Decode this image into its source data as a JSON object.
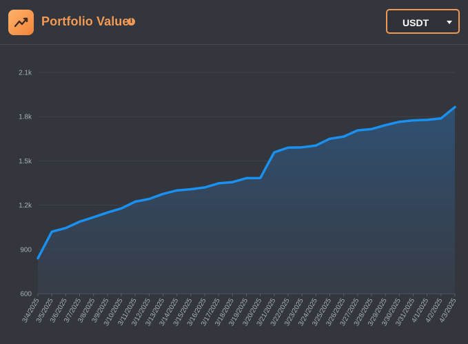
{
  "header": {
    "title": "Portfolio Value",
    "info_icon": "info-icon",
    "logo_icon": "trend-line-icon",
    "currency_select": {
      "value": "USDT"
    }
  },
  "colors": {
    "accent": "#f29a54",
    "line": "#1a90f0",
    "background": "#33363d"
  },
  "chart_data": {
    "type": "area",
    "title": "",
    "xlabel": "",
    "ylabel": "",
    "ylim": [
      600,
      2100
    ],
    "yticks": [
      600,
      900,
      1200,
      1500,
      1800,
      2100
    ],
    "ytick_labels": [
      "600",
      "900",
      "1.2k",
      "1.5k",
      "1.8k",
      "2.1k"
    ],
    "grid": true,
    "legend": "none",
    "categories": [
      "3/4/2025",
      "3/5/2025",
      "3/6/2025",
      "3/7/2025",
      "3/8/2025",
      "3/9/2025",
      "3/10/2025",
      "3/11/2025",
      "3/12/2025",
      "3/13/2025",
      "3/14/2025",
      "3/15/2025",
      "3/16/2025",
      "3/17/2025",
      "3/18/2025",
      "3/19/2025",
      "3/20/2025",
      "3/21/2025",
      "3/22/2025",
      "3/23/2025",
      "3/24/2025",
      "3/25/2025",
      "3/26/2025",
      "3/27/2025",
      "3/28/2025",
      "3/29/2025",
      "3/30/2025",
      "3/31/2025",
      "4/1/2025",
      "4/2/2025",
      "4/3/2025"
    ],
    "values": [
      840,
      1020,
      1045,
      1088,
      1118,
      1150,
      1178,
      1224,
      1242,
      1276,
      1300,
      1308,
      1320,
      1348,
      1356,
      1383,
      1384,
      1558,
      1590,
      1592,
      1604,
      1650,
      1665,
      1707,
      1716,
      1742,
      1765,
      1775,
      1778,
      1788,
      1865
    ]
  }
}
